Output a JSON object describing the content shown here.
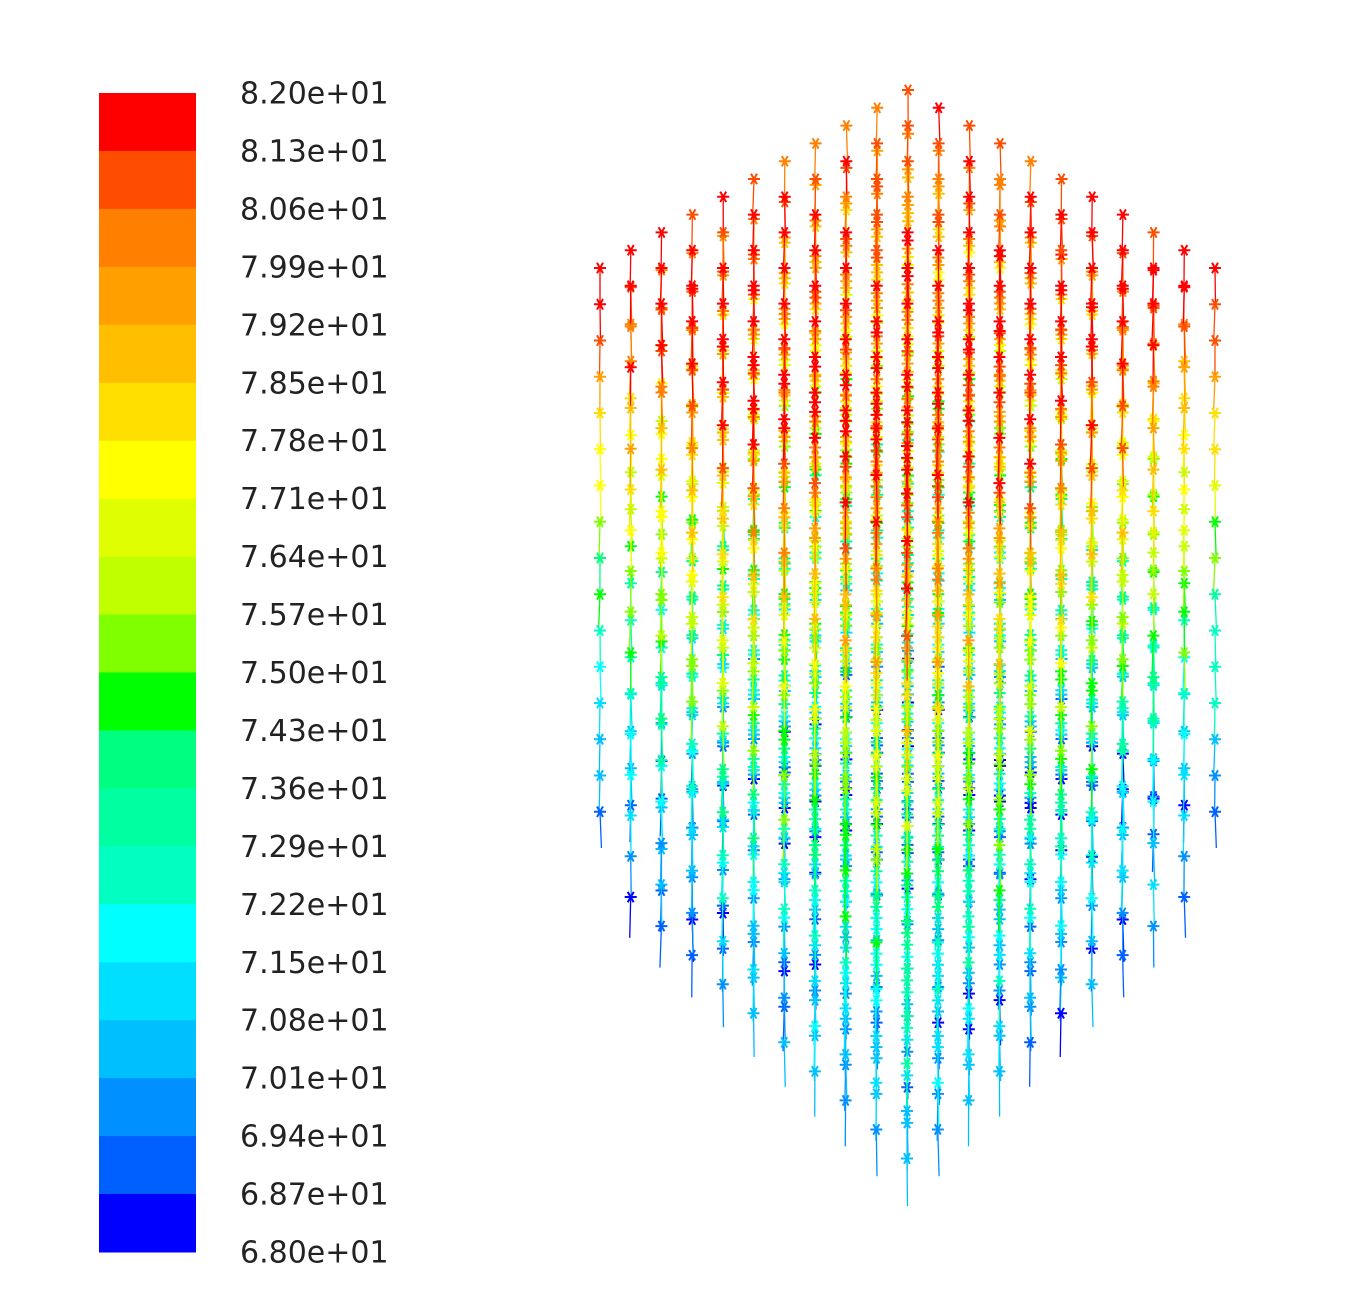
{
  "chart_data": {
    "type": "colorbar",
    "ylim": [
      68,
      82
    ],
    "ticks": [
      {
        "value": 82.0,
        "label": "8.20e+01"
      },
      {
        "value": 81.3,
        "label": "8.13e+01"
      },
      {
        "value": 80.6,
        "label": "8.06e+01"
      },
      {
        "value": 79.9,
        "label": "7.99e+01"
      },
      {
        "value": 79.2,
        "label": "7.92e+01"
      },
      {
        "value": 78.5,
        "label": "7.85e+01"
      },
      {
        "value": 77.8,
        "label": "7.78e+01"
      },
      {
        "value": 77.1,
        "label": "7.71e+01"
      },
      {
        "value": 76.4,
        "label": "7.64e+01"
      },
      {
        "value": 75.7,
        "label": "7.57e+01"
      },
      {
        "value": 75.0,
        "label": "7.50e+01"
      },
      {
        "value": 74.3,
        "label": "7.43e+01"
      },
      {
        "value": 73.6,
        "label": "7.36e+01"
      },
      {
        "value": 72.9,
        "label": "7.29e+01"
      },
      {
        "value": 72.2,
        "label": "7.22e+01"
      },
      {
        "value": 71.5,
        "label": "7.15e+01"
      },
      {
        "value": 70.8,
        "label": "7.08e+01"
      },
      {
        "value": 70.1,
        "label": "7.01e+01"
      },
      {
        "value": 69.4,
        "label": "6.94e+01"
      },
      {
        "value": 68.7,
        "label": "6.87e+01"
      },
      {
        "value": 68.0,
        "label": "6.80e+01"
      }
    ],
    "colors": [
      "#ff0000",
      "#ff4d00",
      "#ff8000",
      "#ffa000",
      "#ffbf00",
      "#ffdf00",
      "#ffff00",
      "#dfff00",
      "#bfff00",
      "#80ff00",
      "#00ff00",
      "#00ff80",
      "#00ffa0",
      "#00ffc0",
      "#00ffff",
      "#00dfff",
      "#00bfff",
      "#0090ff",
      "#0060ff",
      "#0000ff"
    ]
  }
}
